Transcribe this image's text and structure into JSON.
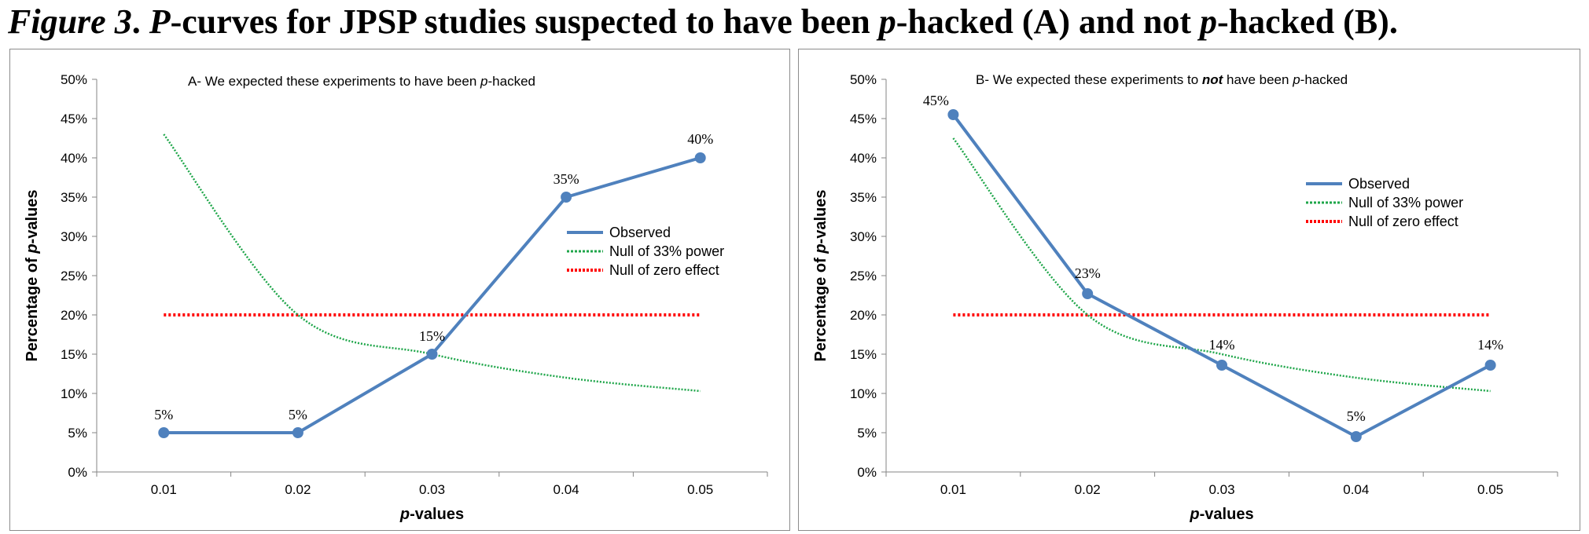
{
  "figure_title": {
    "prefix_italic": "Figure 3",
    "dot": ". ",
    "p1": "P",
    "mid": "-curves for JPSP studies suspected to have been ",
    "p2": "p",
    "mid2": "-hacked (A) and not ",
    "p3": "p",
    "end": "-hacked (B)."
  },
  "chart_data": [
    {
      "type": "line",
      "panel": "A",
      "title_parts": {
        "pre": "A- We expected these experiments to have been ",
        "bold_italic": "",
        "mid": "",
        "italic": "p",
        "post": "-hacked"
      },
      "xlabel_parts": {
        "italic": "p",
        "post": "-values"
      },
      "ylabel_parts": {
        "pre": "Percentage of ",
        "italic": "p",
        "post": "-values"
      },
      "categories": [
        "0.01",
        "0.02",
        "0.03",
        "0.04",
        "0.05"
      ],
      "ylim": [
        0,
        50
      ],
      "yticks": [
        "0%",
        "5%",
        "10%",
        "15%",
        "20%",
        "25%",
        "30%",
        "35%",
        "40%",
        "45%",
        "50%"
      ],
      "legend_position": "right-middle",
      "series": [
        {
          "name": "Observed",
          "values": [
            5,
            5,
            15,
            35,
            40
          ],
          "color": "#4f81bd",
          "style": "solid",
          "labels": [
            "5%",
            "5%",
            "15%",
            "35%",
            "40%"
          ]
        },
        {
          "name": "Null of 33% power",
          "values": [
            43,
            20,
            15,
            12,
            10.3
          ],
          "color": "#1fa64a",
          "style": "dotted"
        },
        {
          "name": "Null of zero effect",
          "values": [
            20,
            20,
            20,
            20,
            20
          ],
          "color": "#ff0000",
          "style": "dotted-thick"
        }
      ]
    },
    {
      "type": "line",
      "panel": "B",
      "title_parts": {
        "pre": "B- We expected these experiments to ",
        "bold_italic": "not",
        "mid": " have been ",
        "italic": "p",
        "post": "-hacked"
      },
      "xlabel_parts": {
        "italic": "p",
        "post": "-values"
      },
      "ylabel_parts": {
        "pre": "Percentage of ",
        "italic": "p",
        "post": "-values"
      },
      "categories": [
        "0.01",
        "0.02",
        "0.03",
        "0.04",
        "0.05"
      ],
      "ylim": [
        0,
        50
      ],
      "yticks": [
        "0%",
        "5%",
        "10%",
        "15%",
        "20%",
        "25%",
        "30%",
        "35%",
        "40%",
        "45%",
        "50%"
      ],
      "legend_position": "right-upper",
      "series": [
        {
          "name": "Observed",
          "values": [
            45.5,
            22.7,
            13.6,
            4.5,
            13.6
          ],
          "color": "#4f81bd",
          "style": "solid",
          "labels": [
            "45%",
            "23%",
            "14%",
            "5%",
            "14%"
          ]
        },
        {
          "name": "Null of 33% power",
          "values": [
            42.5,
            20,
            15,
            12,
            10.3
          ],
          "color": "#1fa64a",
          "style": "dotted"
        },
        {
          "name": "Null of zero effect",
          "values": [
            20,
            20,
            20,
            20,
            20
          ],
          "color": "#ff0000",
          "style": "dotted-thick"
        }
      ]
    }
  ]
}
